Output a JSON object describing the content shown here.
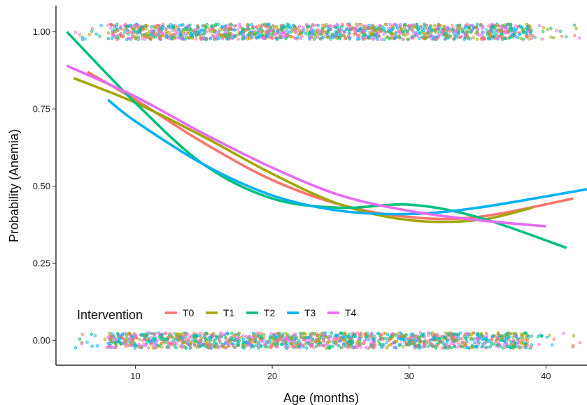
{
  "chart_data": {
    "type": "scatter",
    "title": "",
    "xlabel": "Age (months)",
    "ylabel": "Probability (Anemia)",
    "xlim": [
      4.2,
      43.0
    ],
    "ylim": [
      -0.08,
      1.085
    ],
    "xticks": [
      10,
      20,
      30,
      40
    ],
    "yticks": [
      0.0,
      0.25,
      0.5,
      0.75,
      1.0
    ],
    "ytick_labels": [
      "0.00",
      "0.25",
      "0.50",
      "0.75",
      "1.00"
    ],
    "grid": false,
    "legend": {
      "title": "Intervention",
      "placement": "bottom-left",
      "entries": [
        "T0",
        "T1",
        "T2",
        "T3",
        "T4"
      ]
    },
    "points": {
      "outcomes": [
        0,
        1
      ],
      "jitter": 0.025,
      "age_range": [
        5.5,
        42.5
      ],
      "count_per_outcome": 1400
    },
    "series": [
      {
        "name": "T0",
        "color": "#F8766D",
        "x": [
          6.5,
          10,
          15,
          20,
          25,
          30,
          35,
          42
        ],
        "y": [
          0.87,
          0.78,
          0.64,
          0.52,
          0.44,
          0.4,
          0.4,
          0.46
        ]
      },
      {
        "name": "T1",
        "color": "#A3A500",
        "x": [
          5.5,
          10,
          15,
          20,
          25,
          30,
          35,
          39
        ],
        "y": [
          0.85,
          0.77,
          0.66,
          0.54,
          0.44,
          0.39,
          0.39,
          0.43
        ]
      },
      {
        "name": "T2",
        "color": "#00BF7D",
        "x": [
          5.0,
          10,
          15,
          20,
          25,
          30,
          35,
          41.5
        ],
        "y": [
          1.0,
          0.77,
          0.57,
          0.46,
          0.43,
          0.44,
          0.4,
          0.3
        ]
      },
      {
        "name": "T3",
        "color": "#00B0F6",
        "x": [
          8.0,
          10,
          15,
          20,
          25,
          30,
          35,
          43
        ],
        "y": [
          0.78,
          0.71,
          0.57,
          0.47,
          0.42,
          0.41,
          0.43,
          0.49
        ]
      },
      {
        "name": "T4",
        "color": "#E76BF3",
        "x": [
          5.0,
          10,
          15,
          20,
          25,
          30,
          35,
          40
        ],
        "y": [
          0.89,
          0.79,
          0.67,
          0.56,
          0.47,
          0.42,
          0.39,
          0.37
        ]
      }
    ]
  }
}
